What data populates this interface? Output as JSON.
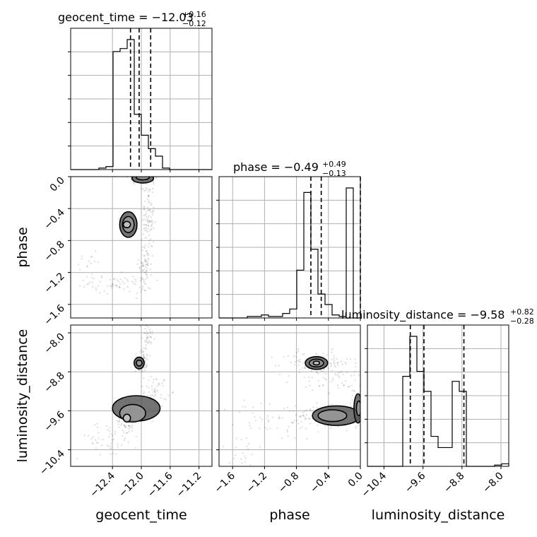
{
  "chart_data": {
    "type": "corner",
    "parameters": [
      "geocent_time",
      "phase",
      "luminosity_distance"
    ],
    "axis_labels": {
      "geocent_time": "geocent_time",
      "phase": "phase",
      "luminosity_distance": "luminosity_distance"
    },
    "titles": [
      {
        "param": "geocent_time",
        "prefix": "geocent_time = ",
        "median": "−12.03",
        "plus": "+0.16",
        "minus": "−0.12"
      },
      {
        "param": "phase",
        "prefix": "phase = ",
        "median": "−0.49",
        "plus": "+0.49",
        "minus": "−0.13"
      },
      {
        "param": "luminosity_distance",
        "prefix": "luminosity_distance = ",
        "median": "−9.58",
        "plus": "+0.82",
        "minus": "−0.28"
      }
    ],
    "ranges": {
      "geocent_time": [
        -12.98,
        -11.02
      ],
      "phase": [
        -1.77,
        0.0
      ],
      "luminosity_distance": [
        -10.74,
        -7.84
      ]
    },
    "ticks": {
      "geocent_time": [
        -12.4,
        -12.0,
        -11.6,
        -11.2
      ],
      "phase": [
        -1.6,
        -1.2,
        -0.8,
        -0.4,
        0.0
      ],
      "luminosity_distance": [
        -10.4,
        -9.6,
        -8.8,
        -8.0
      ]
    },
    "tick_labels": {
      "geocent_time": [
        "−12.4",
        "−12.0",
        "−11.6",
        "−11.2"
      ],
      "phase": [
        "−1.6",
        "−1.2",
        "−0.8",
        "−0.4",
        "0.0"
      ],
      "luminosity_distance": [
        "−10.4",
        "−9.6",
        "−8.8",
        "−8.0"
      ]
    },
    "quantiles": {
      "geocent_time": [
        -12.15,
        -12.03,
        -11.87
      ],
      "phase": [
        -0.62,
        -0.49,
        0.0
      ],
      "luminosity_distance": [
        -9.86,
        -9.58,
        -8.76
      ]
    },
    "histograms": {
      "geocent_time": {
        "edges": [
          -12.98,
          -12.882,
          -12.784,
          -12.686,
          -12.588,
          -12.49,
          -12.392,
          -12.294,
          -12.196,
          -12.098,
          -12.0,
          -11.902,
          -11.804,
          -11.706,
          -11.608,
          -11.51,
          -11.412,
          -11.314,
          -11.216,
          -11.118,
          -11.02
        ],
        "counts": [
          0,
          0,
          0,
          0,
          1,
          2,
          79,
          81,
          87,
          37,
          23,
          14,
          9,
          1,
          0,
          0,
          0,
          0,
          0,
          0
        ]
      },
      "phase": {
        "edges": [
          -1.77,
          -1.6815,
          -1.593,
          -1.5045,
          -1.416,
          -1.3275,
          -1.239,
          -1.1505,
          -1.062,
          -0.9735,
          -0.885,
          -0.7965,
          -0.708,
          -0.6195,
          -0.531,
          -0.4425,
          -0.354,
          -0.2655,
          -0.177,
          -0.0885,
          0.0
        ],
        "counts": [
          0,
          0,
          0,
          0,
          1,
          1,
          2,
          1,
          1,
          3,
          6,
          32,
          84,
          46,
          16,
          9,
          2,
          1,
          87,
          0
        ]
      },
      "luminosity_distance": {
        "edges": [
          -10.74,
          -10.595,
          -10.45,
          -10.305,
          -10.16,
          -10.015,
          -9.87,
          -9.725,
          -9.58,
          -9.435,
          -9.29,
          -9.145,
          -9.0,
          -8.855,
          -8.71,
          -8.565,
          -8.42,
          -8.275,
          -8.13,
          -7.985,
          -7.84
        ],
        "counts": [
          0,
          0,
          0,
          0,
          0,
          72,
          104,
          76,
          60,
          24,
          15,
          15,
          68,
          60,
          0,
          0,
          0,
          0,
          1,
          2
        ]
      }
    },
    "panels_2d": [
      {
        "x": "geocent_time",
        "y": "phase",
        "scatter_clusters": [
          {
            "cx": -12.18,
            "cy": -0.6,
            "sx": 0.05,
            "sy": 0.07,
            "n": 90
          },
          {
            "cx": -12.0,
            "cy": -0.02,
            "sx": 0.09,
            "sy": 0.04,
            "n": 70
          },
          {
            "cx": -11.9,
            "cy": -0.5,
            "sx": 0.04,
            "sy": 0.35,
            "n": 120
          },
          {
            "cx": -11.95,
            "cy": -1.1,
            "sx": 0.04,
            "sy": 0.12,
            "n": 50
          },
          {
            "cx": -12.25,
            "cy": -1.35,
            "sx": 0.2,
            "sy": 0.06,
            "n": 60
          },
          {
            "cx": -12.75,
            "cy": -1.2,
            "sx": 0.1,
            "sy": 0.15,
            "n": 25
          }
        ],
        "contours": [
          {
            "cx": -12.18,
            "cy": -0.6,
            "rx": 0.12,
            "ry": 0.16,
            "level": 3
          },
          {
            "cx": -12.18,
            "cy": -0.6,
            "rx": 0.08,
            "ry": 0.1,
            "level": 2
          },
          {
            "cx": -12.2,
            "cy": -0.6,
            "rx": 0.05,
            "ry": 0.04,
            "level": 1
          },
          {
            "cx": -11.98,
            "cy": -0.02,
            "rx": 0.15,
            "ry": 0.06,
            "level": 3
          },
          {
            "cx": -11.98,
            "cy": -0.01,
            "rx": 0.09,
            "ry": 0.03,
            "level": 2
          }
        ]
      },
      {
        "x": "geocent_time",
        "y": "luminosity_distance",
        "scatter_clusters": [
          {
            "cx": -12.18,
            "cy": -9.75,
            "sx": 0.06,
            "sy": 0.18,
            "n": 110
          },
          {
            "cx": -12.0,
            "cy": -8.6,
            "sx": 0.04,
            "sy": 0.1,
            "n": 70
          },
          {
            "cx": -11.8,
            "cy": -9.2,
            "sx": 0.08,
            "sy": 0.16,
            "n": 60
          },
          {
            "cx": -11.92,
            "cy": -8.15,
            "sx": 0.04,
            "sy": 0.25,
            "n": 50
          },
          {
            "cx": -12.5,
            "cy": -10.2,
            "sx": 0.22,
            "sy": 0.18,
            "n": 45
          }
        ],
        "contours": [
          {
            "cx": -12.07,
            "cy": -9.55,
            "rx": 0.33,
            "ry": 0.26,
            "level": 3
          },
          {
            "cx": -12.12,
            "cy": -9.65,
            "rx": 0.18,
            "ry": 0.18,
            "level": 2
          },
          {
            "cx": -12.2,
            "cy": -9.75,
            "rx": 0.05,
            "ry": 0.08,
            "level": 1
          },
          {
            "cx": -12.03,
            "cy": -8.62,
            "rx": 0.07,
            "ry": 0.12,
            "level": 3
          },
          {
            "cx": -12.03,
            "cy": -8.62,
            "rx": 0.04,
            "ry": 0.06,
            "level": 2
          }
        ]
      },
      {
        "x": "phase",
        "y": "luminosity_distance",
        "scatter_clusters": [
          {
            "cx": -0.55,
            "cy": -8.62,
            "sx": 0.22,
            "sy": 0.12,
            "n": 120
          },
          {
            "cx": -0.4,
            "cy": -9.7,
            "sx": 0.18,
            "sy": 0.15,
            "n": 90
          },
          {
            "cx": -1.1,
            "cy": -9.8,
            "sx": 0.3,
            "sy": 0.2,
            "n": 60
          },
          {
            "cx": -0.05,
            "cy": -9.6,
            "sx": 0.05,
            "sy": 0.2,
            "n": 60
          },
          {
            "cx": -0.25,
            "cy": -9.0,
            "sx": 0.25,
            "sy": 0.12,
            "n": 50
          },
          {
            "cx": -1.5,
            "cy": -10.4,
            "sx": 0.15,
            "sy": 0.2,
            "n": 20
          }
        ],
        "contours": [
          {
            "cx": -0.55,
            "cy": -8.62,
            "rx": 0.14,
            "ry": 0.13,
            "level": 3
          },
          {
            "cx": -0.55,
            "cy": -8.62,
            "rx": 0.09,
            "ry": 0.08,
            "level": 2
          },
          {
            "cx": -0.55,
            "cy": -8.62,
            "rx": 0.04,
            "ry": 0.04,
            "level": 1
          },
          {
            "cx": -0.3,
            "cy": -9.7,
            "rx": 0.3,
            "ry": 0.2,
            "level": 3
          },
          {
            "cx": -0.35,
            "cy": -9.7,
            "rx": 0.18,
            "ry": 0.12,
            "level": 2
          },
          {
            "cx": -0.03,
            "cy": -9.55,
            "rx": 0.05,
            "ry": 0.3,
            "level": 3
          },
          {
            "cx": -0.02,
            "cy": -9.55,
            "rx": 0.03,
            "ry": 0.15,
            "level": 2
          }
        ]
      }
    ],
    "grid": true,
    "colors": {
      "line": "#000000",
      "grid": "#b0b0b0",
      "fill_levels": [
        "#5a5a5a",
        "#9a9a9a",
        "#c8c8c8"
      ]
    }
  }
}
